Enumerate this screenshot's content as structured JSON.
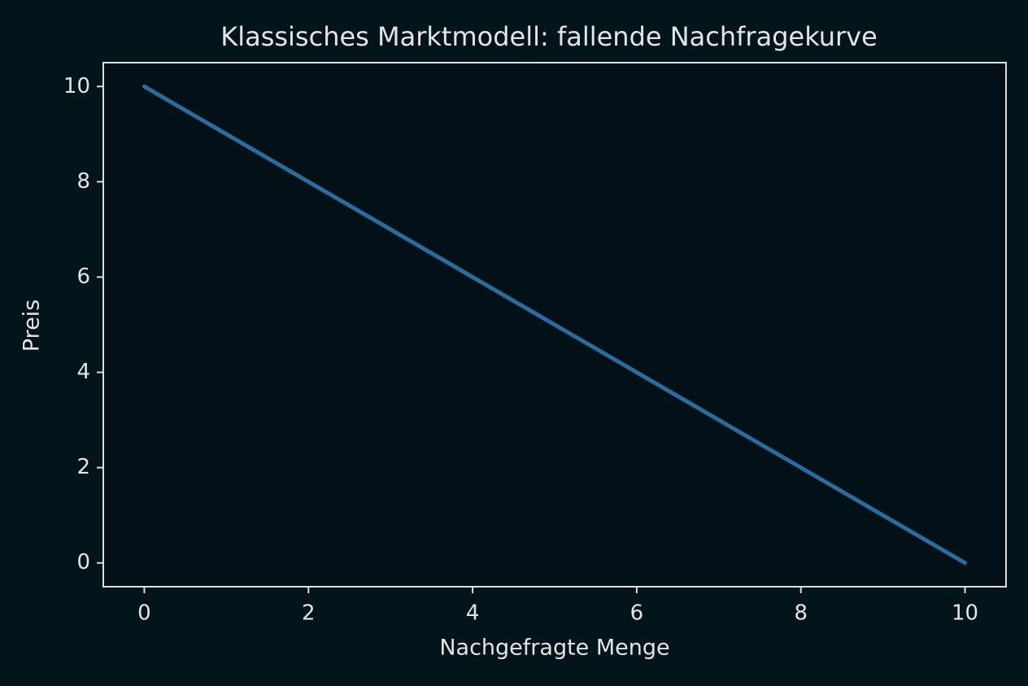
{
  "chart_data": {
    "type": "line",
    "title": "Klassisches Marktmodell: fallende Nachfragekurve",
    "x_label": "Nachgefragte Menge",
    "y_label": "Preis",
    "x": [
      0,
      1,
      2,
      3,
      4,
      5,
      6,
      7,
      8,
      9,
      10
    ],
    "series": [
      {
        "color": "#2b6c9c",
        "values": [
          10,
          9,
          8,
          7,
          6,
          5,
          4,
          3,
          2,
          1,
          0
        ]
      }
    ],
    "xlim": [
      -0.5,
      10.5
    ],
    "xticks": [
      0,
      2,
      4,
      6,
      8,
      10
    ],
    "ylim": [
      -0.5,
      10.5
    ],
    "yticks": [
      0,
      2,
      4,
      6,
      8,
      10
    ],
    "grid": false
  }
}
